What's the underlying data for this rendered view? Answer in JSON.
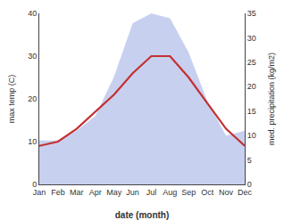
{
  "chart_data": {
    "type": "line",
    "xlabel": "date (month)",
    "ylabel": "max temp (C)",
    "y2label": "med. precipitation (kg/m2)",
    "categories": [
      "Jan",
      "Feb",
      "Mar",
      "Apr",
      "May",
      "Jun",
      "Jul",
      "Aug",
      "Sep",
      "Oct",
      "Nov",
      "Dec"
    ],
    "series": [
      {
        "type": "area",
        "axis": "y2",
        "color": "#c8d0f0",
        "values": [
          9,
          9,
          11,
          14,
          22,
          33,
          35,
          34,
          27,
          17,
          10,
          11
        ]
      },
      {
        "type": "line",
        "color": "#c43030",
        "values": [
          9,
          10,
          13,
          17,
          21,
          26,
          30,
          30,
          25,
          19,
          13,
          9
        ]
      }
    ],
    "ylim": [
      0,
      40
    ],
    "yticks": [
      0,
      10,
      20,
      30,
      40
    ],
    "y2lim": [
      0,
      35
    ],
    "y2ticks": [
      0,
      5,
      10,
      15,
      20,
      25,
      30,
      35
    ],
    "grid": false
  }
}
